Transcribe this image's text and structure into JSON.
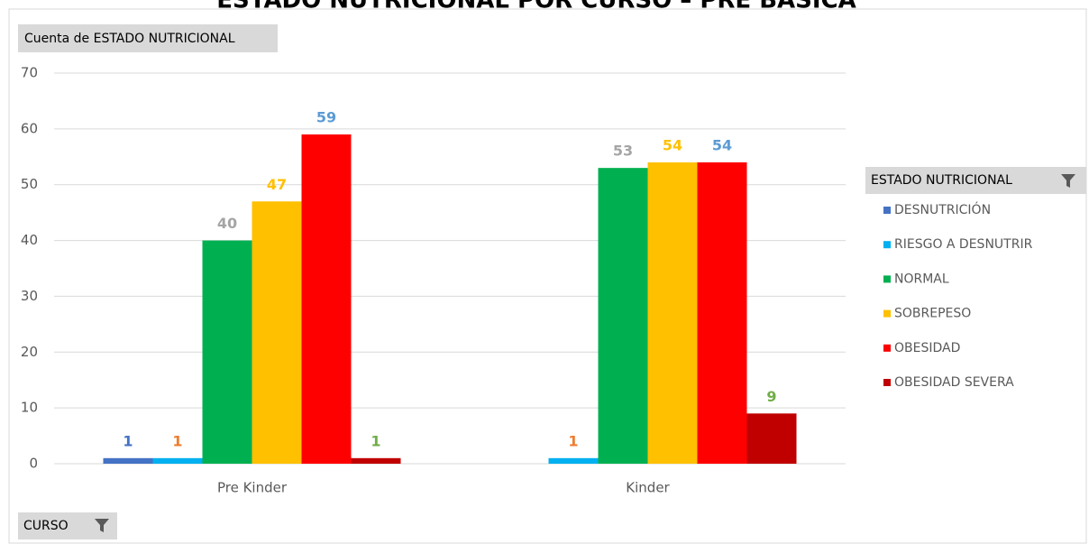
{
  "chart_data": {
    "type": "bar",
    "title": "ESTADO NUTRICIONAL POR CURSO – PRE BÁSICA",
    "value_field_button": "Cuenta de ESTADO NUTRICIONAL",
    "legend_field_button": "ESTADO NUTRICIONAL",
    "axis_field_button": "CURSO",
    "categories": [
      "Pre Kinder",
      "Kinder"
    ],
    "series": [
      {
        "name": "DESNUTRICIÓN",
        "color": "#4472c4",
        "label_color": "#4472c4",
        "values": [
          1,
          null
        ]
      },
      {
        "name": "RIESGO A DESNUTRIR",
        "color": "#00b0f0",
        "label_color": "#ed7d31",
        "values": [
          1,
          1
        ]
      },
      {
        "name": "NORMAL",
        "color": "#00b050",
        "label_color": "#a5a5a5",
        "values": [
          40,
          53
        ]
      },
      {
        "name": "SOBREPESO",
        "color": "#ffc000",
        "label_color": "#ffc000",
        "values": [
          47,
          54
        ]
      },
      {
        "name": "OBESIDAD",
        "color": "#ff0000",
        "label_color": "#5b9bd5",
        "values": [
          59,
          54
        ]
      },
      {
        "name": "OBESIDAD SEVERA",
        "color": "#c00000",
        "label_color": "#70ad47",
        "values": [
          1,
          9
        ]
      }
    ],
    "ylim": [
      0,
      70
    ],
    "yticks": [
      0,
      10,
      20,
      30,
      40,
      50,
      60,
      70
    ],
    "grid": true,
    "legend": "right"
  }
}
